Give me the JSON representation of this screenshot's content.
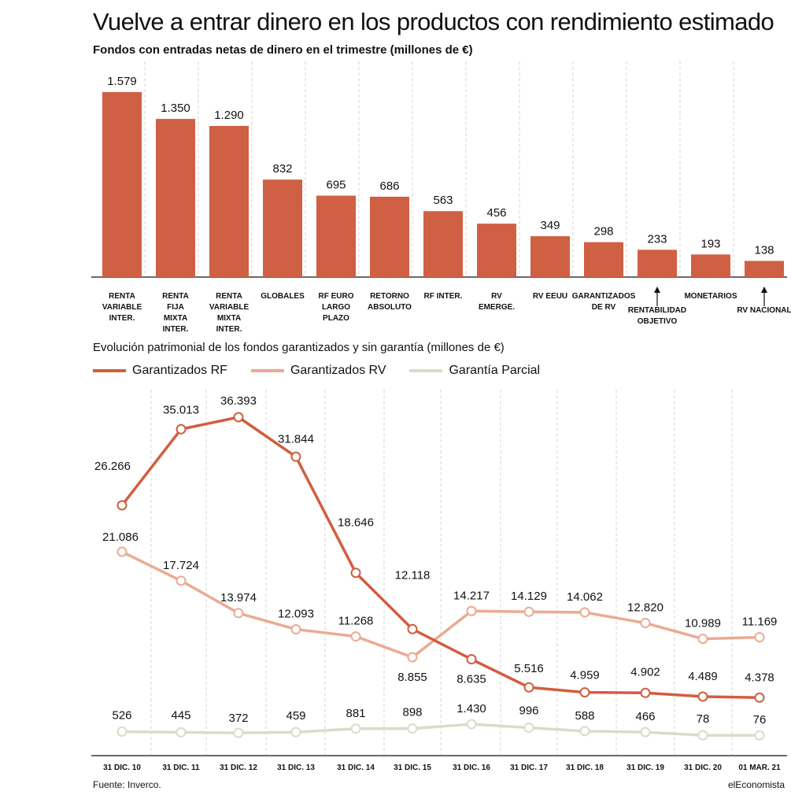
{
  "header": {
    "title": "Vuelve a entrar dinero en los productos con rendimiento estimado"
  },
  "footer": {
    "source": "Fuente: Inverco.",
    "brand": "elEconomista"
  },
  "colors": {
    "bar": "#d06043",
    "garantizados_rf": "#d25d3f",
    "garantizados_rv": "#eaab92",
    "garantia_parcial": "#d9dccb",
    "grid": "#d4d4d4"
  },
  "chart_data": [
    {
      "type": "bar",
      "title": "Fondos con entradas netas de dinero en el trimestre (millones de €)",
      "categories": [
        [
          "RENTA",
          "VARIABLE",
          "INTER."
        ],
        [
          "RENTA",
          "FIJA",
          "MIXTA",
          "INTER."
        ],
        [
          "RENTA",
          "VARIABLE",
          "MIXTA",
          "INTER."
        ],
        [
          "GLOBALES"
        ],
        [
          "RF EURO",
          "LARGO",
          "PLAZO"
        ],
        [
          "RETORNO",
          "ABSOLUTO"
        ],
        [
          "RF INTER."
        ],
        [
          "RV",
          "EMERGE."
        ],
        [
          "RV EEUU"
        ],
        [
          "GARANTIZADOS",
          "DE RV"
        ],
        [
          "RENTABILIDAD",
          "OBJETIVO"
        ],
        [
          "MONETARIOS"
        ],
        [
          "RV NACIONAL"
        ]
      ],
      "values": [
        1579,
        1350,
        1290,
        832,
        695,
        686,
        563,
        456,
        349,
        298,
        233,
        193,
        138
      ],
      "value_labels": [
        "1.579",
        "1.350",
        "1.290",
        "832",
        "695",
        "686",
        "563",
        "456",
        "349",
        "298",
        "233",
        "193",
        "138"
      ],
      "ylim": [
        0,
        1579
      ]
    },
    {
      "type": "line",
      "title": "Evolución patrimonial de los fondos garantizados y sin garantía (millones de €)",
      "categories": [
        "31 DIC. 10",
        "31 DIC. 11",
        "31 DIC. 12",
        "31 DIC. 13",
        "31 DIC. 14",
        "31 DIC. 15",
        "31 DIC. 16",
        "31 DIC. 17",
        "31 DIC. 18",
        "31 DIC. 19",
        "31 DIC. 20",
        "01 MAR. 21"
      ],
      "series": [
        {
          "name": "Garantizados RF",
          "values": [
            26266,
            35013,
            36393,
            31844,
            18646,
            12118,
            8635,
            5516,
            4959,
            4902,
            4489,
            4378
          ],
          "labels": [
            "26.266",
            "35.013",
            "36.393",
            "31.844",
            "18.646",
            "12.118",
            "8.635",
            "5.516",
            "4.959",
            "4.902",
            "4.489",
            "4.378"
          ]
        },
        {
          "name": "Garantizados RV",
          "values": [
            21086,
            17724,
            13974,
            12093,
            11268,
            8855,
            14217,
            14129,
            14062,
            12820,
            10989,
            11169
          ],
          "labels": [
            "21.086",
            "17.724",
            "13.974",
            "12.093",
            "11.268",
            "8.855",
            "14.217",
            "14.129",
            "14.062",
            "12.820",
            "10.989",
            "11.169"
          ]
        },
        {
          "name": "Garantía Parcial",
          "values": [
            526,
            445,
            372,
            459,
            881,
            898,
            1430,
            996,
            588,
            466,
            78,
            76
          ],
          "labels": [
            "526",
            "445",
            "372",
            "459",
            "881",
            "898",
            "1.430",
            "996",
            "588",
            "466",
            "78",
            "76"
          ]
        }
      ],
      "legend_position": "top-left",
      "grid": true
    }
  ]
}
